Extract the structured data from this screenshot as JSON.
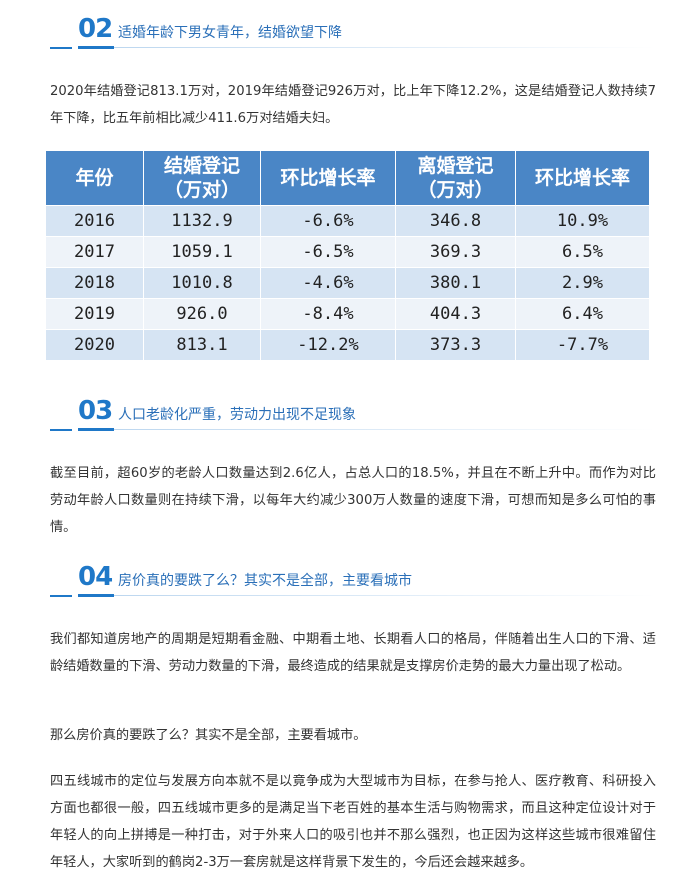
{
  "sections": [
    {
      "num": "02",
      "title": "适婚年龄下男女青年，结婚欲望下降"
    },
    {
      "num": "03",
      "title": "人口老龄化严重，劳动力出现不足现象"
    },
    {
      "num": "04",
      "title": "房价真的要跌了么？其实不是全部，主要看城市"
    }
  ],
  "paragraphs": {
    "p1": "2020年结婚登记813.1万对，2019年结婚登记926万对，比上年下降12.2%，这是结婚登记人数持续7年下降，比五年前相比减少411.6万对结婚夫妇。",
    "p2": "截至目前，超60岁的老龄人口数量达到2.6亿人，占总人口的18.5%，并且在不断上升中。而作为对比劳动年龄人口数量则在持续下滑，以每年大约减少300万人数量的速度下滑，可想而知是多么可怕的事情。",
    "p3": "我们都知道房地产的周期是短期看金融、中期看土地、长期看人口的格局，伴随着出生人口的下滑、适龄结婚数量的下滑、劳动力数量的下滑，最终造成的结果就是支撑房价走势的最大力量出现了松动。",
    "p4": "那么房价真的要跌了么？其实不是全部，主要看城市。",
    "p5": "四五线城市的定位与发展方向本就不是以竟争成为大型城市为目标，在参与抢人、医疗教育、科研投入方面也都很一般，四五线城市更多的是满足当下老百姓的基本生活与购物需求，而且这种定位设计对于年轻人的向上拼搏是一种打击，对于外来人口的吸引也并不那么强烈，也正因为这样这些城市很难留住年轻人，大家听到的鹤岗2-3万一套房就是这样背景下发生的，今后还会越来越多。"
  },
  "table": {
    "headers": {
      "year": "年份",
      "marriage_1": "结婚登记",
      "marriage_2": "（万对）",
      "marriage_growth": "环比增长率",
      "divorce_1": "离婚登记",
      "divorce_2": "（万对）",
      "divorce_growth": "环比增长率"
    },
    "rows": [
      {
        "year": "2016",
        "marriage": "1132.9",
        "m_rate": "-6.6%",
        "divorce": "346.8",
        "d_rate": "10.9%"
      },
      {
        "year": "2017",
        "marriage": "1059.1",
        "m_rate": "-6.5%",
        "divorce": "369.3",
        "d_rate": "6.5%"
      },
      {
        "year": "2018",
        "marriage": "1010.8",
        "m_rate": "-4.6%",
        "divorce": "380.1",
        "d_rate": "2.9%"
      },
      {
        "year": "2019",
        "marriage": "926.0",
        "m_rate": "-8.4%",
        "divorce": "404.3",
        "d_rate": "6.4%"
      },
      {
        "year": "2020",
        "marriage": "813.1",
        "m_rate": "-12.2%",
        "divorce": "373.3",
        "d_rate": "-7.7%"
      }
    ]
  },
  "colors": {
    "accent": "#1f78c8",
    "table_header": "#4a86c6",
    "row_odd": "#d6e4f3",
    "row_even": "#eef3f9"
  }
}
